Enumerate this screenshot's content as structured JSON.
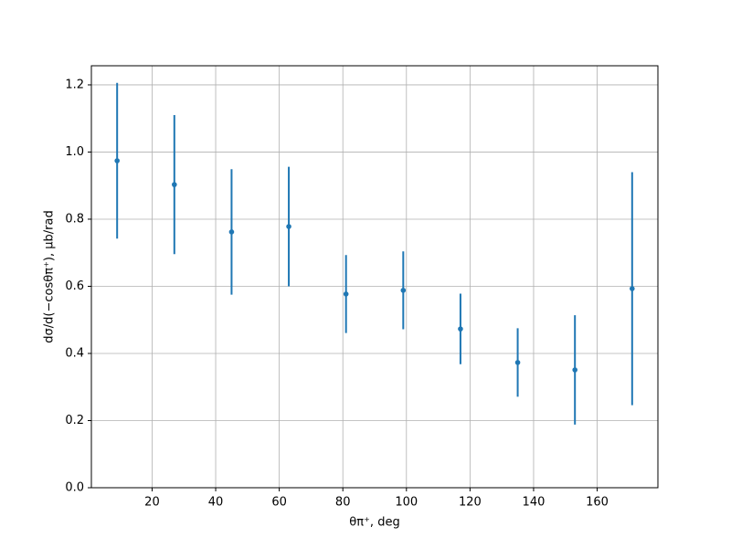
{
  "chart_data": {
    "type": "errorbar",
    "x_label": "θπ⁺, deg",
    "y_label": "dσ/d(−cosθπ⁺), μb/rad",
    "x": [
      9,
      27,
      45,
      63,
      81,
      99,
      117,
      135,
      153,
      171
    ],
    "series": [
      {
        "color": "#1f77b4",
        "values": [
          0.974,
          0.903,
          0.762,
          0.778,
          0.577,
          0.588,
          0.473,
          0.373,
          0.351,
          0.593
        ],
        "errors": [
          0.232,
          0.207,
          0.187,
          0.178,
          0.116,
          0.116,
          0.105,
          0.102,
          0.163,
          0.347
        ]
      }
    ],
    "xlim": [
      0.9,
      179.1
    ],
    "ylim": [
      0,
      1.257
    ],
    "xticks": [
      20,
      40,
      60,
      80,
      100,
      120,
      140,
      160
    ],
    "yticks": [
      {
        "value": 0,
        "label": "0.0"
      },
      {
        "value": 0.2,
        "label": "0.2"
      },
      {
        "value": 0.4,
        "label": "0.4"
      },
      {
        "value": 0.6,
        "label": "0.6"
      },
      {
        "value": 0.8,
        "label": "0.8"
      },
      {
        "value": 1.0,
        "label": "1.0"
      },
      {
        "value": 1.2,
        "label": "1.2"
      }
    ],
    "grid": true
  }
}
